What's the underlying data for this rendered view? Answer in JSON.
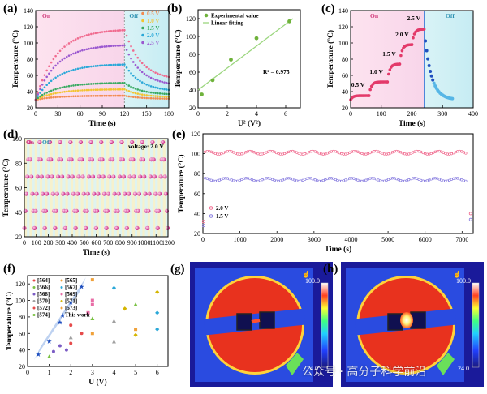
{
  "panel_labels": [
    "(a)",
    "(b)",
    "(c)",
    "(d)",
    "(e)",
    "(f)",
    "(g)",
    "(h)"
  ],
  "watermark": "公众号 · 高分子科学前沿",
  "chart_data": [
    {
      "id": "a",
      "type": "line",
      "xlabel": "Time (s)",
      "ylabel": "Temperature (°C)",
      "xlim": [
        0,
        180
      ],
      "ylim": [
        20,
        140
      ],
      "xticks": [
        0,
        30,
        60,
        90,
        120,
        150,
        180
      ],
      "yticks": [
        20,
        40,
        60,
        80,
        100,
        120,
        140
      ],
      "annotations": [
        "On",
        "Off"
      ],
      "legend_position": "top-right",
      "series": [
        {
          "name": "0.5 V",
          "color": "#f28b50",
          "values_on_end": 35,
          "off_end": 31
        },
        {
          "name": "1.0 V",
          "color": "#f3c431",
          "values_on_end": 43,
          "off_end": 33
        },
        {
          "name": "1.5 V",
          "color": "#3aaa62",
          "values_on_end": 51,
          "off_end": 36
        },
        {
          "name": "2.0 V",
          "color": "#2aa8d8",
          "values_on_end": 74,
          "off_end": 40
        },
        {
          "name": "2.5 V",
          "color": "#9b59d0",
          "values_on_end": 98,
          "off_end": 47
        }
      ],
      "extra_top_series": {
        "color": "#f06b8f",
        "values_on_end": 117,
        "off_end": 54
      }
    },
    {
      "id": "b",
      "type": "scatter",
      "xlabel": "U² (V²)",
      "ylabel": "Temperature (°C)",
      "xlim": [
        0,
        7
      ],
      "ylim": [
        20,
        130
      ],
      "xticks": [
        0,
        2,
        4,
        6
      ],
      "yticks": [
        20,
        40,
        60,
        80,
        100,
        120
      ],
      "legend_position": "top-left",
      "series": [
        {
          "name": "Experimental value",
          "x": [
            0.25,
            1.0,
            2.25,
            4.0,
            6.25
          ],
          "y": [
            35,
            51,
            74,
            98,
            117
          ]
        },
        {
          "name": "Linear fitting",
          "x": [
            0,
            6.5
          ],
          "y": [
            40,
            120
          ]
        }
      ],
      "annotation": "R² = 0.975"
    },
    {
      "id": "c",
      "type": "scatter",
      "xlabel": "Time (s)",
      "ylabel": "Temperature (°C)",
      "xlim": [
        0,
        400
      ],
      "ylim": [
        20,
        140
      ],
      "xticks": [
        0,
        100,
        200,
        300,
        400
      ],
      "yticks": [
        20,
        40,
        60,
        80,
        100,
        120,
        140
      ],
      "annotations": [
        "On",
        "Off",
        "0.5 V",
        "1.0 V",
        "1.5 V",
        "2.0 V",
        "2.5 V"
      ],
      "steps": [
        {
          "label": "0.5 V",
          "t_start": 0,
          "t_end": 60,
          "temp": 35
        },
        {
          "label": "1.0 V",
          "t_start": 60,
          "t_end": 120,
          "temp": 52
        },
        {
          "label": "1.5 V",
          "t_start": 120,
          "t_end": 160,
          "temp": 74
        },
        {
          "label": "2.0 V",
          "t_start": 160,
          "t_end": 200,
          "temp": 98
        },
        {
          "label": "2.5 V",
          "t_start": 200,
          "t_end": 240,
          "temp": 117
        }
      ],
      "cooling_end": {
        "t": 335,
        "temp": 30
      }
    },
    {
      "id": "d",
      "type": "scatter",
      "xlabel": "Time (s)",
      "ylabel": "Temperature (°C)",
      "xlim": [
        0,
        1200
      ],
      "ylim": [
        20,
        100
      ],
      "xticks": [
        0,
        100,
        200,
        300,
        400,
        500,
        600,
        700,
        800,
        900,
        1000,
        1100,
        1200
      ],
      "yticks": [
        20,
        40,
        60,
        80,
        100
      ],
      "annotations": [
        "On",
        "Off",
        "voltage: 2.0 V"
      ],
      "cycles": 28,
      "peak": 97,
      "base": 27
    },
    {
      "id": "e",
      "type": "scatter",
      "xlabel": "Time (s)",
      "ylabel": "Temperature (°C)",
      "xlim": [
        0,
        7300
      ],
      "ylim": [
        20,
        120
      ],
      "xticks": [
        0,
        1000,
        2000,
        3000,
        4000,
        5000,
        6000,
        7000
      ],
      "yticks": [
        20,
        40,
        60,
        80,
        100,
        120
      ],
      "legend_position": "bottom-left",
      "series": [
        {
          "name": "2.0 V",
          "color": "#f06b8f",
          "plateau": 101
        },
        {
          "name": "1.5 V",
          "color": "#8a7fe0",
          "plateau": 74
        }
      ]
    },
    {
      "id": "f",
      "type": "scatter",
      "xlabel": "U (V)",
      "ylabel": "Temperature (°C)",
      "xlim": [
        0,
        6.5
      ],
      "ylim": [
        20,
        130
      ],
      "xticks": [
        0,
        1,
        2,
        3,
        4,
        5,
        6
      ],
      "yticks": [
        20,
        40,
        60,
        80,
        100,
        120
      ],
      "legend_position": "top-left",
      "legend": [
        "[564]",
        "[565]",
        "[566]",
        "[567]",
        "[568]",
        "[569]",
        "[570]",
        "[571]",
        "[572]",
        "[573]",
        "[574]",
        "This work"
      ],
      "this_work": {
        "x": [
          0.5,
          1.0,
          1.5,
          2.0,
          2.5
        ],
        "y": [
          35,
          51,
          74,
          98,
          117
        ]
      },
      "refs": [
        {
          "x": 2.0,
          "y": 70
        },
        {
          "x": 3.0,
          "y": 125
        },
        {
          "x": 1.0,
          "y": 32
        },
        {
          "x": 4.0,
          "y": 115
        },
        {
          "x": 1.5,
          "y": 45
        },
        {
          "x": 3.0,
          "y": 95
        },
        {
          "x": 2.0,
          "y": 55
        },
        {
          "x": 6.0,
          "y": 110
        },
        {
          "x": 2.5,
          "y": 60
        },
        {
          "x": 5.0,
          "y": 65
        },
        {
          "x": 3.0,
          "y": 78
        },
        {
          "x": 6.0,
          "y": 65
        },
        {
          "x": 1.2,
          "y": 38
        },
        {
          "x": 2.8,
          "y": 85
        },
        {
          "x": 4.0,
          "y": 75
        },
        {
          "x": 4.5,
          "y": 90
        },
        {
          "x": 2.0,
          "y": 48
        },
        {
          "x": 3.0,
          "y": 60
        },
        {
          "x": 5.0,
          "y": 95
        },
        {
          "x": 6.0,
          "y": 85
        },
        {
          "x": 1.8,
          "y": 40
        },
        {
          "x": 3.0,
          "y": 100
        },
        {
          "x": 4.0,
          "y": 50
        },
        {
          "x": 5.0,
          "y": 58
        }
      ]
    },
    {
      "id": "g",
      "type": "heatmap",
      "colorbar_max": "100.0",
      "colorbar_min": "24.0"
    },
    {
      "id": "h",
      "type": "heatmap",
      "colorbar_max": "100.0",
      "colorbar_min": "24.0"
    }
  ]
}
